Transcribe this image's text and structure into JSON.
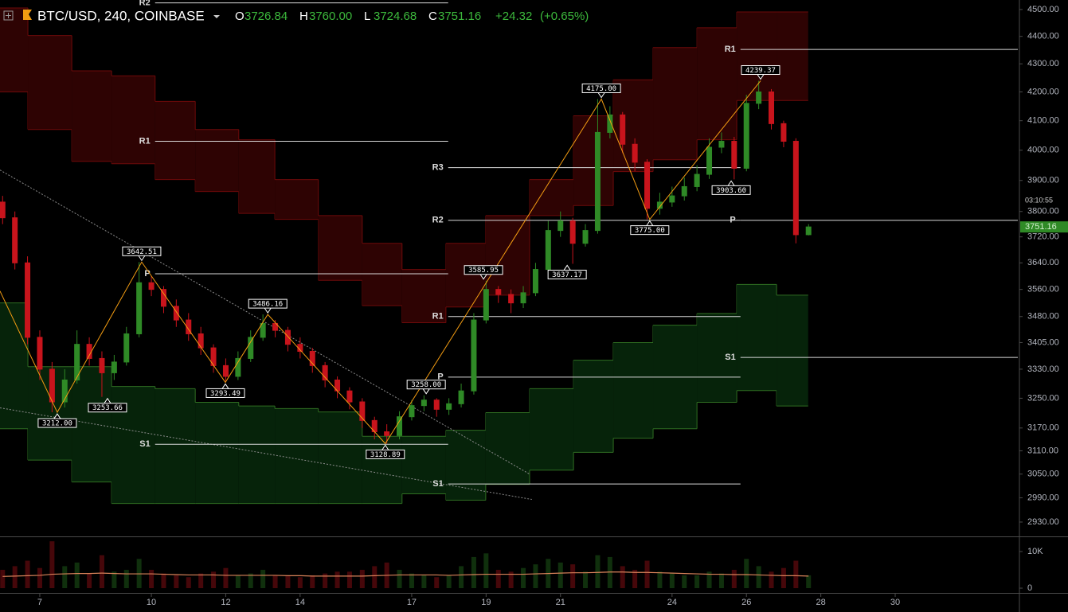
{
  "chart_data": {
    "type": "candlestick",
    "symbol": "BTC/USD, 240, COINBASE",
    "ohlc_header": [
      {
        "key": "O",
        "value": 3726.84,
        "label": "3726.84"
      },
      {
        "key": "H",
        "value": 3760,
        "label": "3760.00"
      },
      {
        "key": "L",
        "value": 3724.68,
        "label": "3724.68"
      },
      {
        "key": "C",
        "value": 3751.16,
        "label": "3751.16"
      }
    ],
    "change": {
      "value": 24.32,
      "label": "+24.32"
    },
    "change_percent": {
      "value": 0.65,
      "label": "(+0.65%)"
    },
    "log_scale": true,
    "up_color": "#2f8a26",
    "down_color": "#c8141c",
    "xlim": [
      5.93,
      33.34
    ],
    "xticks": [
      7,
      10,
      12,
      14,
      17,
      19,
      21,
      24,
      26,
      28,
      30
    ],
    "ylim": [
      2895,
      4536
    ],
    "yticks": [
      {
        "value": 4500,
        "label": "4500.00"
      },
      {
        "value": 4400,
        "label": "4400.00"
      },
      {
        "value": 4300,
        "label": "4300.00"
      },
      {
        "value": 4200,
        "label": "4200.00"
      },
      {
        "value": 4100,
        "label": "4100.00"
      },
      {
        "value": 4000,
        "label": "4000.00"
      },
      {
        "value": 3900,
        "label": "3900.00"
      },
      {
        "value": 3800,
        "label": "3800.00"
      },
      {
        "value": 3720,
        "label": "3720.00"
      },
      {
        "value": 3640,
        "label": "3640.00"
      },
      {
        "value": 3560,
        "label": "3560.00"
      },
      {
        "value": 3480,
        "label": "3480.00"
      },
      {
        "value": 3405,
        "label": "3405.00"
      },
      {
        "value": 3330,
        "label": "3330.00"
      },
      {
        "value": 3250,
        "label": "3250.00"
      },
      {
        "value": 3170,
        "label": "3170.00"
      },
      {
        "value": 3110,
        "label": "3110.00"
      },
      {
        "value": 3050,
        "label": "3050.00"
      },
      {
        "value": 2990,
        "label": "2990.00"
      },
      {
        "value": 2930,
        "label": "2930.00"
      }
    ],
    "price_tag": {
      "value": 3751.16,
      "label": "3751.16"
    },
    "countdown": "03:10:55",
    "x": [
      6,
      6.33,
      6.67,
      7,
      7.33,
      7.67,
      8,
      8.33,
      8.67,
      9,
      9.33,
      9.67,
      10,
      10.33,
      10.67,
      11,
      11.33,
      11.67,
      12,
      12.33,
      12.67,
      13,
      13.33,
      13.67,
      14,
      14.33,
      14.67,
      15,
      15.33,
      15.67,
      16,
      16.33,
      16.67,
      17,
      17.33,
      17.67,
      18,
      18.33,
      18.67,
      19,
      19.33,
      19.67,
      20,
      20.33,
      20.67,
      21,
      21.33,
      21.67,
      22,
      22.33,
      22.67,
      23,
      23.33,
      23.67,
      24,
      24.33,
      24.67,
      25,
      25.33,
      25.67,
      26,
      26.33,
      26.67,
      27,
      27.33,
      27.67
    ],
    "open": [
      3830,
      3780,
      3640,
      3420,
      3330,
      3240,
      3300,
      3400,
      3360,
      3320,
      3350,
      3430,
      3580,
      3560,
      3510,
      3470,
      3430,
      3390,
      3340,
      3310,
      3360,
      3420,
      3460,
      3440,
      3400,
      3380,
      3340,
      3300,
      3270,
      3240,
      3190,
      3160,
      3150,
      3200,
      3230,
      3245,
      3220,
      3235,
      3270,
      3470,
      3560,
      3545,
      3520,
      3550,
      3620,
      3740,
      3770,
      3700,
      3740,
      4060,
      4120,
      4020,
      3960,
      3810,
      3830,
      3850,
      3880,
      3920,
      4010,
      4030,
      3940,
      4160,
      4200,
      4090,
      4030,
      3726.84
    ],
    "high": [
      3850,
      3800,
      3660,
      3440,
      3350,
      3330,
      3440,
      3420,
      3380,
      3370,
      3450,
      3642.51,
      3600,
      3570,
      3530,
      3490,
      3450,
      3400,
      3360,
      3380,
      3440,
      3486.16,
      3470,
      3450,
      3420,
      3390,
      3350,
      3310,
      3280,
      3250,
      3200,
      3180,
      3215,
      3245,
      3258,
      3250,
      3250,
      3290,
      3490,
      3585.95,
      3570,
      3560,
      3570,
      3640,
      3770,
      3800,
      3780,
      3760,
      4175,
      4150,
      4130,
      4040,
      3970,
      3860,
      3880,
      3910,
      3950,
      4040,
      4060,
      4045,
      4190,
      4239.37,
      4210,
      4100,
      4040,
      3760
    ],
    "low": [
      3760,
      3620,
      3400,
      3300,
      3212,
      3225,
      3290,
      3340,
      3253.66,
      3300,
      3340,
      3420,
      3540,
      3490,
      3450,
      3410,
      3370,
      3320,
      3293.49,
      3300,
      3350,
      3410,
      3420,
      3380,
      3360,
      3320,
      3280,
      3250,
      3220,
      3170,
      3140,
      3128.89,
      3140,
      3190,
      3215,
      3200,
      3205,
      3225,
      3260,
      3460,
      3520,
      3490,
      3505,
      3540,
      3610,
      3720,
      3637.17,
      3690,
      3730,
      4040,
      3990,
      3930,
      3775,
      3790,
      3815,
      3835,
      3865,
      3905,
      3990,
      3903.6,
      3930,
      4140,
      4070,
      4010,
      3700,
      3724.68
    ],
    "close": [
      3780,
      3640,
      3420,
      3330,
      3240,
      3300,
      3400,
      3360,
      3320,
      3350,
      3430,
      3580,
      3560,
      3510,
      3470,
      3430,
      3390,
      3340,
      3310,
      3360,
      3420,
      3460,
      3440,
      3400,
      3380,
      3340,
      3300,
      3270,
      3240,
      3190,
      3160,
      3150,
      3200,
      3230,
      3245,
      3220,
      3235,
      3270,
      3470,
      3560,
      3545,
      3520,
      3550,
      3620,
      3740,
      3770,
      3700,
      3740,
      4060,
      4120,
      4020,
      3960,
      3810,
      3830,
      3850,
      3880,
      3920,
      4010,
      4030,
      3940,
      4160,
      4200,
      4090,
      4030,
      3726.84,
      3751.16
    ],
    "upper_cloud": {
      "fill": "#2e0303",
      "edge": "#6e0a0a",
      "x": [
        5.93,
        6.68,
        7.86,
        8.93,
        10.1,
        11.18,
        12.35,
        13.32,
        14.49,
        15.67,
        16.74,
        17.92,
        18.99,
        20.17,
        21.35,
        22.42,
        23.49,
        24.67,
        25.74,
        26.81,
        27.66
      ],
      "top": [
        4506,
        4403,
        4275,
        4257,
        4167,
        4070,
        4035,
        3903,
        3787,
        3700,
        3620,
        3700,
        3787,
        3903,
        4117,
        4243,
        4359,
        4432,
        4491,
        4491,
        4491
      ],
      "bottom": [
        4200,
        4070,
        3963,
        3955,
        3903,
        3864,
        3794,
        3775,
        3587,
        3512,
        3462,
        3508,
        3543,
        3787,
        3819,
        3929,
        3968,
        4035,
        4170,
        4170,
        4170
      ]
    },
    "lower_cloud": {
      "fill": "#06230a",
      "edge": "#2f6e22",
      "x": [
        5.93,
        6.68,
        7.86,
        8.93,
        10.1,
        11.18,
        12.35,
        13.32,
        14.49,
        15.67,
        16.74,
        17.92,
        18.99,
        20.17,
        21.35,
        22.42,
        23.49,
        24.67,
        25.74,
        26.81,
        27.66
      ],
      "top": [
        3520,
        3337,
        3337,
        3282,
        3276,
        3239,
        3229,
        3222,
        3213,
        3148,
        3148,
        3164,
        3211,
        3276,
        3355,
        3405,
        3455,
        3489,
        3575,
        3543,
        3543
      ],
      "bottom": [
        3168,
        3086,
        3030,
        2976,
        2976,
        2976,
        2976,
        2976,
        2976,
        2976,
        3000,
        2984,
        3024,
        3060,
        3106,
        3143,
        3168,
        3239,
        3271,
        3229,
        3229
      ]
    },
    "trendline_color": "#8c8c8c",
    "trendlines": [
      {
        "x": [
          5.93,
          20.17
        ],
        "values": [
          3934,
          3050
        ]
      },
      {
        "x": [
          5.93,
          20.23
        ],
        "values": [
          3224,
          2986
        ]
      }
    ],
    "zigzag": {
      "color": "#f39c12",
      "x": [
        5.93,
        7.47,
        9.74,
        11.99,
        13.13,
        16.29,
        22.1,
        23.4,
        26.38
      ],
      "values": [
        3555,
        3212,
        3642.51,
        3293.49,
        3486.16,
        3128.89,
        4175,
        3775,
        4239.37
      ]
    },
    "pivot_labels": [
      {
        "x": 7.47,
        "value": 3212,
        "label": "3212.00",
        "position": "below"
      },
      {
        "x": 8.82,
        "value": 3253.66,
        "label": "3253.66",
        "position": "below"
      },
      {
        "x": 9.74,
        "value": 3642.51,
        "label": "3642.51",
        "position": "above"
      },
      {
        "x": 11.99,
        "value": 3293.49,
        "label": "3293.49",
        "position": "below"
      },
      {
        "x": 13.13,
        "value": 3486.16,
        "label": "3486.16",
        "position": "above"
      },
      {
        "x": 16.29,
        "value": 3128.89,
        "label": "3128.89",
        "position": "below"
      },
      {
        "x": 17.39,
        "value": 3258,
        "label": "3258.00",
        "position": "above"
      },
      {
        "x": 18.93,
        "value": 3585.95,
        "label": "3585.95",
        "position": "above"
      },
      {
        "x": 21.18,
        "value": 3637.17,
        "label": "3637.17",
        "position": "below"
      },
      {
        "x": 22.1,
        "value": 4175,
        "label": "4175.00",
        "position": "above"
      },
      {
        "x": 23.4,
        "value": 3775,
        "label": "3775.00",
        "position": "below"
      },
      {
        "x": 25.59,
        "value": 3903.6,
        "label": "3903.60",
        "position": "below"
      },
      {
        "x": 26.38,
        "value": 4239.37,
        "label": "4239.37",
        "position": "above"
      }
    ],
    "pivot_color": "#d9d9d9",
    "pivot_levels": [
      {
        "start": 10.1,
        "end": 17.98,
        "levels": [
          {
            "name": "R2",
            "value": 4525
          },
          {
            "name": "R1",
            "value": 4030
          },
          {
            "name": "P",
            "value": 3607
          },
          {
            "name": "S1",
            "value": 3127
          }
        ]
      },
      {
        "start": 17.98,
        "end": 25.84,
        "levels": [
          {
            "name": "R3",
            "value": 3942
          },
          {
            "name": "R2",
            "value": 3772
          },
          {
            "name": "R1",
            "value": 3480
          },
          {
            "name": "P",
            "value": 3308
          },
          {
            "name": "S1",
            "value": 3025
          }
        ]
      },
      {
        "start": 25.84,
        "end": 33.3,
        "levels": [
          {
            "name": "R1",
            "value": 4352
          },
          {
            "name": "P",
            "value": 3772
          },
          {
            "name": "S1",
            "value": 3363
          }
        ]
      }
    ],
    "volume": {
      "ylim": [
        -1300,
        13700
      ],
      "yticks": [
        0,
        {
          "value": 10000,
          "label": "10K"
        }
      ],
      "ma_color": "#d9835a",
      "values": [
        5000,
        6000,
        7500,
        5500,
        12800,
        6000,
        7000,
        4000,
        9000,
        4500,
        5000,
        8000,
        5000,
        4000,
        3500,
        3000,
        4000,
        4500,
        5500,
        3500,
        4000,
        5000,
        3500,
        3500,
        3000,
        3500,
        4000,
        4500,
        4500,
        5000,
        6000,
        7000,
        5000,
        4000,
        3500,
        3000,
        3500,
        6000,
        8500,
        9500,
        5000,
        4500,
        5500,
        6500,
        8000,
        7000,
        6500,
        4500,
        9000,
        8500,
        6000,
        5000,
        7500,
        4500,
        4000,
        3500,
        3500,
        4500,
        4000,
        5000,
        8000,
        6000,
        4500,
        5500,
        7500,
        3500
      ],
      "ma": [
        3200,
        3300,
        3400,
        3500,
        3800,
        3900,
        4000,
        4000,
        4100,
        4000,
        3900,
        3900,
        3900,
        3800,
        3700,
        3600,
        3600,
        3600,
        3500,
        3500,
        3500,
        3500,
        3500,
        3400,
        3400,
        3300,
        3300,
        3300,
        3300,
        3300,
        3400,
        3500,
        3600,
        3600,
        3600,
        3600,
        3500,
        3600,
        3700,
        3800,
        3800,
        3800,
        3800,
        3900,
        4000,
        4100,
        4200,
        4200,
        4300,
        4400,
        4400,
        4300,
        4300,
        4200,
        4100,
        4000,
        3900,
        3800,
        3800,
        3700,
        3700,
        3600,
        3500,
        3400,
        3400,
        3300
      ]
    }
  }
}
